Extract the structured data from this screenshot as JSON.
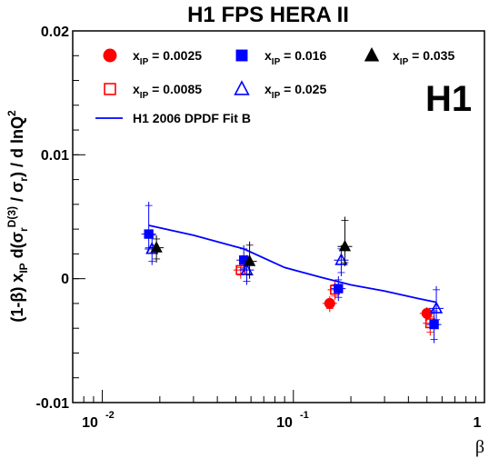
{
  "title": "H1 FPS HERA II",
  "logo": "H1",
  "y_axis_label": "(1-β)  x_IP d(σ_r^D(3) / σ_r) / d lnQ²",
  "y_label_parts": {
    "pre": "(1-β)  x",
    "sub_ip": "IP",
    "d_sigma": " d(σ",
    "sub_r1": "r",
    "sup_d3": "D(3)",
    "mid": " / σ",
    "sub_r2": "r",
    "post": ") / d lnQ",
    "sup_2": "2"
  },
  "x_axis_label": "β",
  "y_ticks": [
    "0.02",
    "0.01",
    "0",
    "-0.01"
  ],
  "x_ticks": [
    {
      "base": "10",
      "exp": "-2"
    },
    {
      "base": "10",
      "exp": "-1"
    },
    {
      "base": "1",
      "exp": ""
    }
  ],
  "legend": [
    {
      "prefix": "x",
      "sub": "IP",
      "text": " = 0.0025",
      "marker": "circle",
      "filled": true,
      "color": "#ff0000"
    },
    {
      "prefix": "x",
      "sub": "IP",
      "text": " = 0.016",
      "marker": "square",
      "filled": true,
      "color": "#0000ff"
    },
    {
      "prefix": "x",
      "sub": "IP",
      "text": " = 0.035",
      "marker": "triangle",
      "filled": true,
      "color": "#000000"
    },
    {
      "prefix": "x",
      "sub": "IP",
      "text": " = 0.0085",
      "marker": "square",
      "filled": false,
      "color": "#ff0000"
    },
    {
      "prefix": "x",
      "sub": "IP",
      "text": " = 0.025",
      "marker": "triangle",
      "filled": false,
      "color": "#0000ff"
    },
    {
      "prefix": "",
      "sub": "",
      "text": "H1 2006 DPDF Fit B",
      "marker": "line",
      "filled": false,
      "color": "#0000ff"
    }
  ],
  "chart_data": {
    "type": "scatter",
    "title": "H1 FPS HERA II",
    "xlabel": "β",
    "ylabel": "(1-β) x_IP d(σ_r^D(3)/σ_r)/d lnQ²",
    "x_scale": "log",
    "xlim": [
      0.007,
      1
    ],
    "ylim": [
      -0.01,
      0.02
    ],
    "grid": false,
    "legend_position": "top",
    "series": [
      {
        "name": "x_IP = 0.0025",
        "marker": "circle",
        "filled": true,
        "color": "#ff0000",
        "points": [
          {
            "x": 0.155,
            "y": -0.002,
            "err_lo": 0.0007,
            "err_hi": 0.0006
          },
          {
            "x": 0.5,
            "y": -0.0028,
            "err_lo": 0.0006,
            "err_hi": 0.0005
          }
        ]
      },
      {
        "name": "x_IP = 0.0085",
        "marker": "square",
        "filled": false,
        "color": "#ff0000",
        "points": [
          {
            "x": 0.053,
            "y": 0.0007,
            "err_lo": 0.0007,
            "err_hi": 0.0005
          },
          {
            "x": 0.165,
            "y": -0.0009,
            "err_lo": 0.0008,
            "err_hi": 0.0007
          },
          {
            "x": 0.52,
            "y": -0.0036,
            "err_lo": 0.001,
            "err_hi": 0.0008
          }
        ]
      },
      {
        "name": "x_IP = 0.016",
        "marker": "square",
        "filled": true,
        "color": "#0000ff",
        "points": [
          {
            "x": 0.0175,
            "y": 0.0036,
            "err_lo": 0.0014,
            "err_hi": 0.0026
          },
          {
            "x": 0.055,
            "y": 0.0015,
            "err_lo": 0.001,
            "err_hi": 0.0012
          },
          {
            "x": 0.172,
            "y": -0.0008,
            "err_lo": 0.001,
            "err_hi": 0.001
          },
          {
            "x": 0.545,
            "y": -0.0037,
            "err_lo": 0.0015,
            "err_hi": 0.0014
          }
        ]
      },
      {
        "name": "x_IP = 0.025",
        "marker": "triangle",
        "filled": false,
        "color": "#0000ff",
        "points": [
          {
            "x": 0.0182,
            "y": 0.0024,
            "err_lo": 0.0013,
            "err_hi": 0.0014
          },
          {
            "x": 0.057,
            "y": 0.0007,
            "err_lo": 0.0012,
            "err_hi": 0.0012
          },
          {
            "x": 0.178,
            "y": 0.0015,
            "err_lo": 0.0013,
            "err_hi": 0.0012
          },
          {
            "x": 0.56,
            "y": -0.0024,
            "err_lo": 0.0012,
            "err_hi": 0.0018
          }
        ]
      },
      {
        "name": "x_IP = 0.035",
        "marker": "triangle",
        "filled": true,
        "color": "#000000",
        "points": [
          {
            "x": 0.0192,
            "y": 0.0025,
            "err_lo": 0.0012,
            "err_hi": 0.001
          },
          {
            "x": 0.059,
            "y": 0.0014,
            "err_lo": 0.0014,
            "err_hi": 0.0016
          },
          {
            "x": 0.186,
            "y": 0.0026,
            "err_lo": 0.0016,
            "err_hi": 0.0024
          }
        ]
      }
    ],
    "fit_curve": {
      "name": "H1 2006 DPDF Fit B",
      "color": "#0000ff",
      "x": [
        0.0175,
        0.03,
        0.055,
        0.09,
        0.14,
        0.2,
        0.3,
        0.45,
        0.56
      ],
      "y": [
        0.0043,
        0.0035,
        0.0024,
        0.0009,
        0.0001,
        -0.0005,
        -0.001,
        -0.0016,
        -0.0019
      ]
    }
  }
}
